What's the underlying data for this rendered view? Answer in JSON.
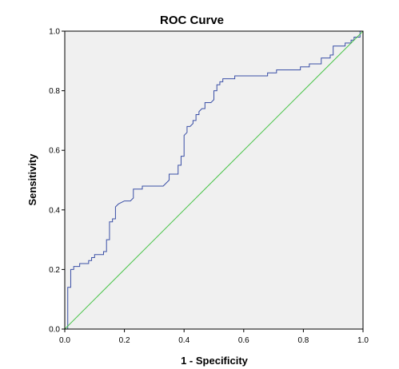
{
  "chart_data": {
    "type": "line",
    "title": "ROC Curve",
    "xlabel": "1 - Specificity",
    "ylabel": "Sensitivity",
    "xlim": [
      0,
      1
    ],
    "ylim": [
      0,
      1
    ],
    "xticks": [
      "0.0",
      "0.2",
      "0.4",
      "0.6",
      "0.8",
      "1.0"
    ],
    "yticks": [
      "0.0",
      "0.2",
      "0.4",
      "0.6",
      "0.8",
      "1.0"
    ],
    "grid": false,
    "background_color": "#f0f0f0",
    "series": [
      {
        "color": "#3a4fa6",
        "x": [
          0,
          0.01,
          0.01,
          0.02,
          0.02,
          0.03,
          0.03,
          0.05,
          0.05,
          0.08,
          0.08,
          0.09,
          0.09,
          0.1,
          0.1,
          0.13,
          0.13,
          0.14,
          0.14,
          0.15,
          0.15,
          0.16,
          0.16,
          0.17,
          0.17,
          0.18,
          0.2,
          0.22,
          0.23,
          0.23,
          0.26,
          0.26,
          0.33,
          0.34,
          0.35,
          0.35,
          0.38,
          0.38,
          0.39,
          0.39,
          0.4,
          0.4,
          0.41,
          0.41,
          0.42,
          0.43,
          0.43,
          0.44,
          0.44,
          0.45,
          0.45,
          0.46,
          0.46,
          0.47,
          0.47,
          0.49,
          0.5,
          0.5,
          0.51,
          0.51,
          0.52,
          0.52,
          0.53,
          0.53,
          0.55,
          0.55,
          0.57,
          0.57,
          0.63,
          0.68,
          0.68,
          0.71,
          0.71,
          0.77,
          0.79,
          0.79,
          0.82,
          0.82,
          0.83,
          0.83,
          0.86,
          0.86,
          0.89,
          0.89,
          0.9,
          0.9,
          0.94,
          0.94,
          0.96,
          0.96,
          0.97,
          0.97,
          0.99,
          0.99,
          1.0
        ],
        "y": [
          0,
          0,
          0.14,
          0.14,
          0.2,
          0.2,
          0.21,
          0.21,
          0.22,
          0.22,
          0.23,
          0.23,
          0.24,
          0.24,
          0.25,
          0.25,
          0.26,
          0.26,
          0.3,
          0.3,
          0.36,
          0.36,
          0.37,
          0.37,
          0.41,
          0.42,
          0.43,
          0.43,
          0.44,
          0.47,
          0.47,
          0.48,
          0.48,
          0.49,
          0.5,
          0.52,
          0.52,
          0.55,
          0.55,
          0.58,
          0.58,
          0.65,
          0.66,
          0.68,
          0.68,
          0.69,
          0.7,
          0.7,
          0.72,
          0.72,
          0.73,
          0.74,
          0.74,
          0.74,
          0.76,
          0.76,
          0.77,
          0.8,
          0.8,
          0.82,
          0.82,
          0.83,
          0.83,
          0.84,
          0.84,
          0.84,
          0.84,
          0.85,
          0.85,
          0.85,
          0.86,
          0.86,
          0.87,
          0.87,
          0.87,
          0.88,
          0.88,
          0.89,
          0.89,
          0.89,
          0.89,
          0.91,
          0.91,
          0.92,
          0.92,
          0.95,
          0.95,
          0.96,
          0.96,
          0.97,
          0.97,
          0.98,
          0.98,
          1.0,
          1.0
        ]
      },
      {
        "color": "#4bc44b",
        "x": [
          0,
          1
        ],
        "y": [
          0,
          1
        ]
      }
    ]
  }
}
